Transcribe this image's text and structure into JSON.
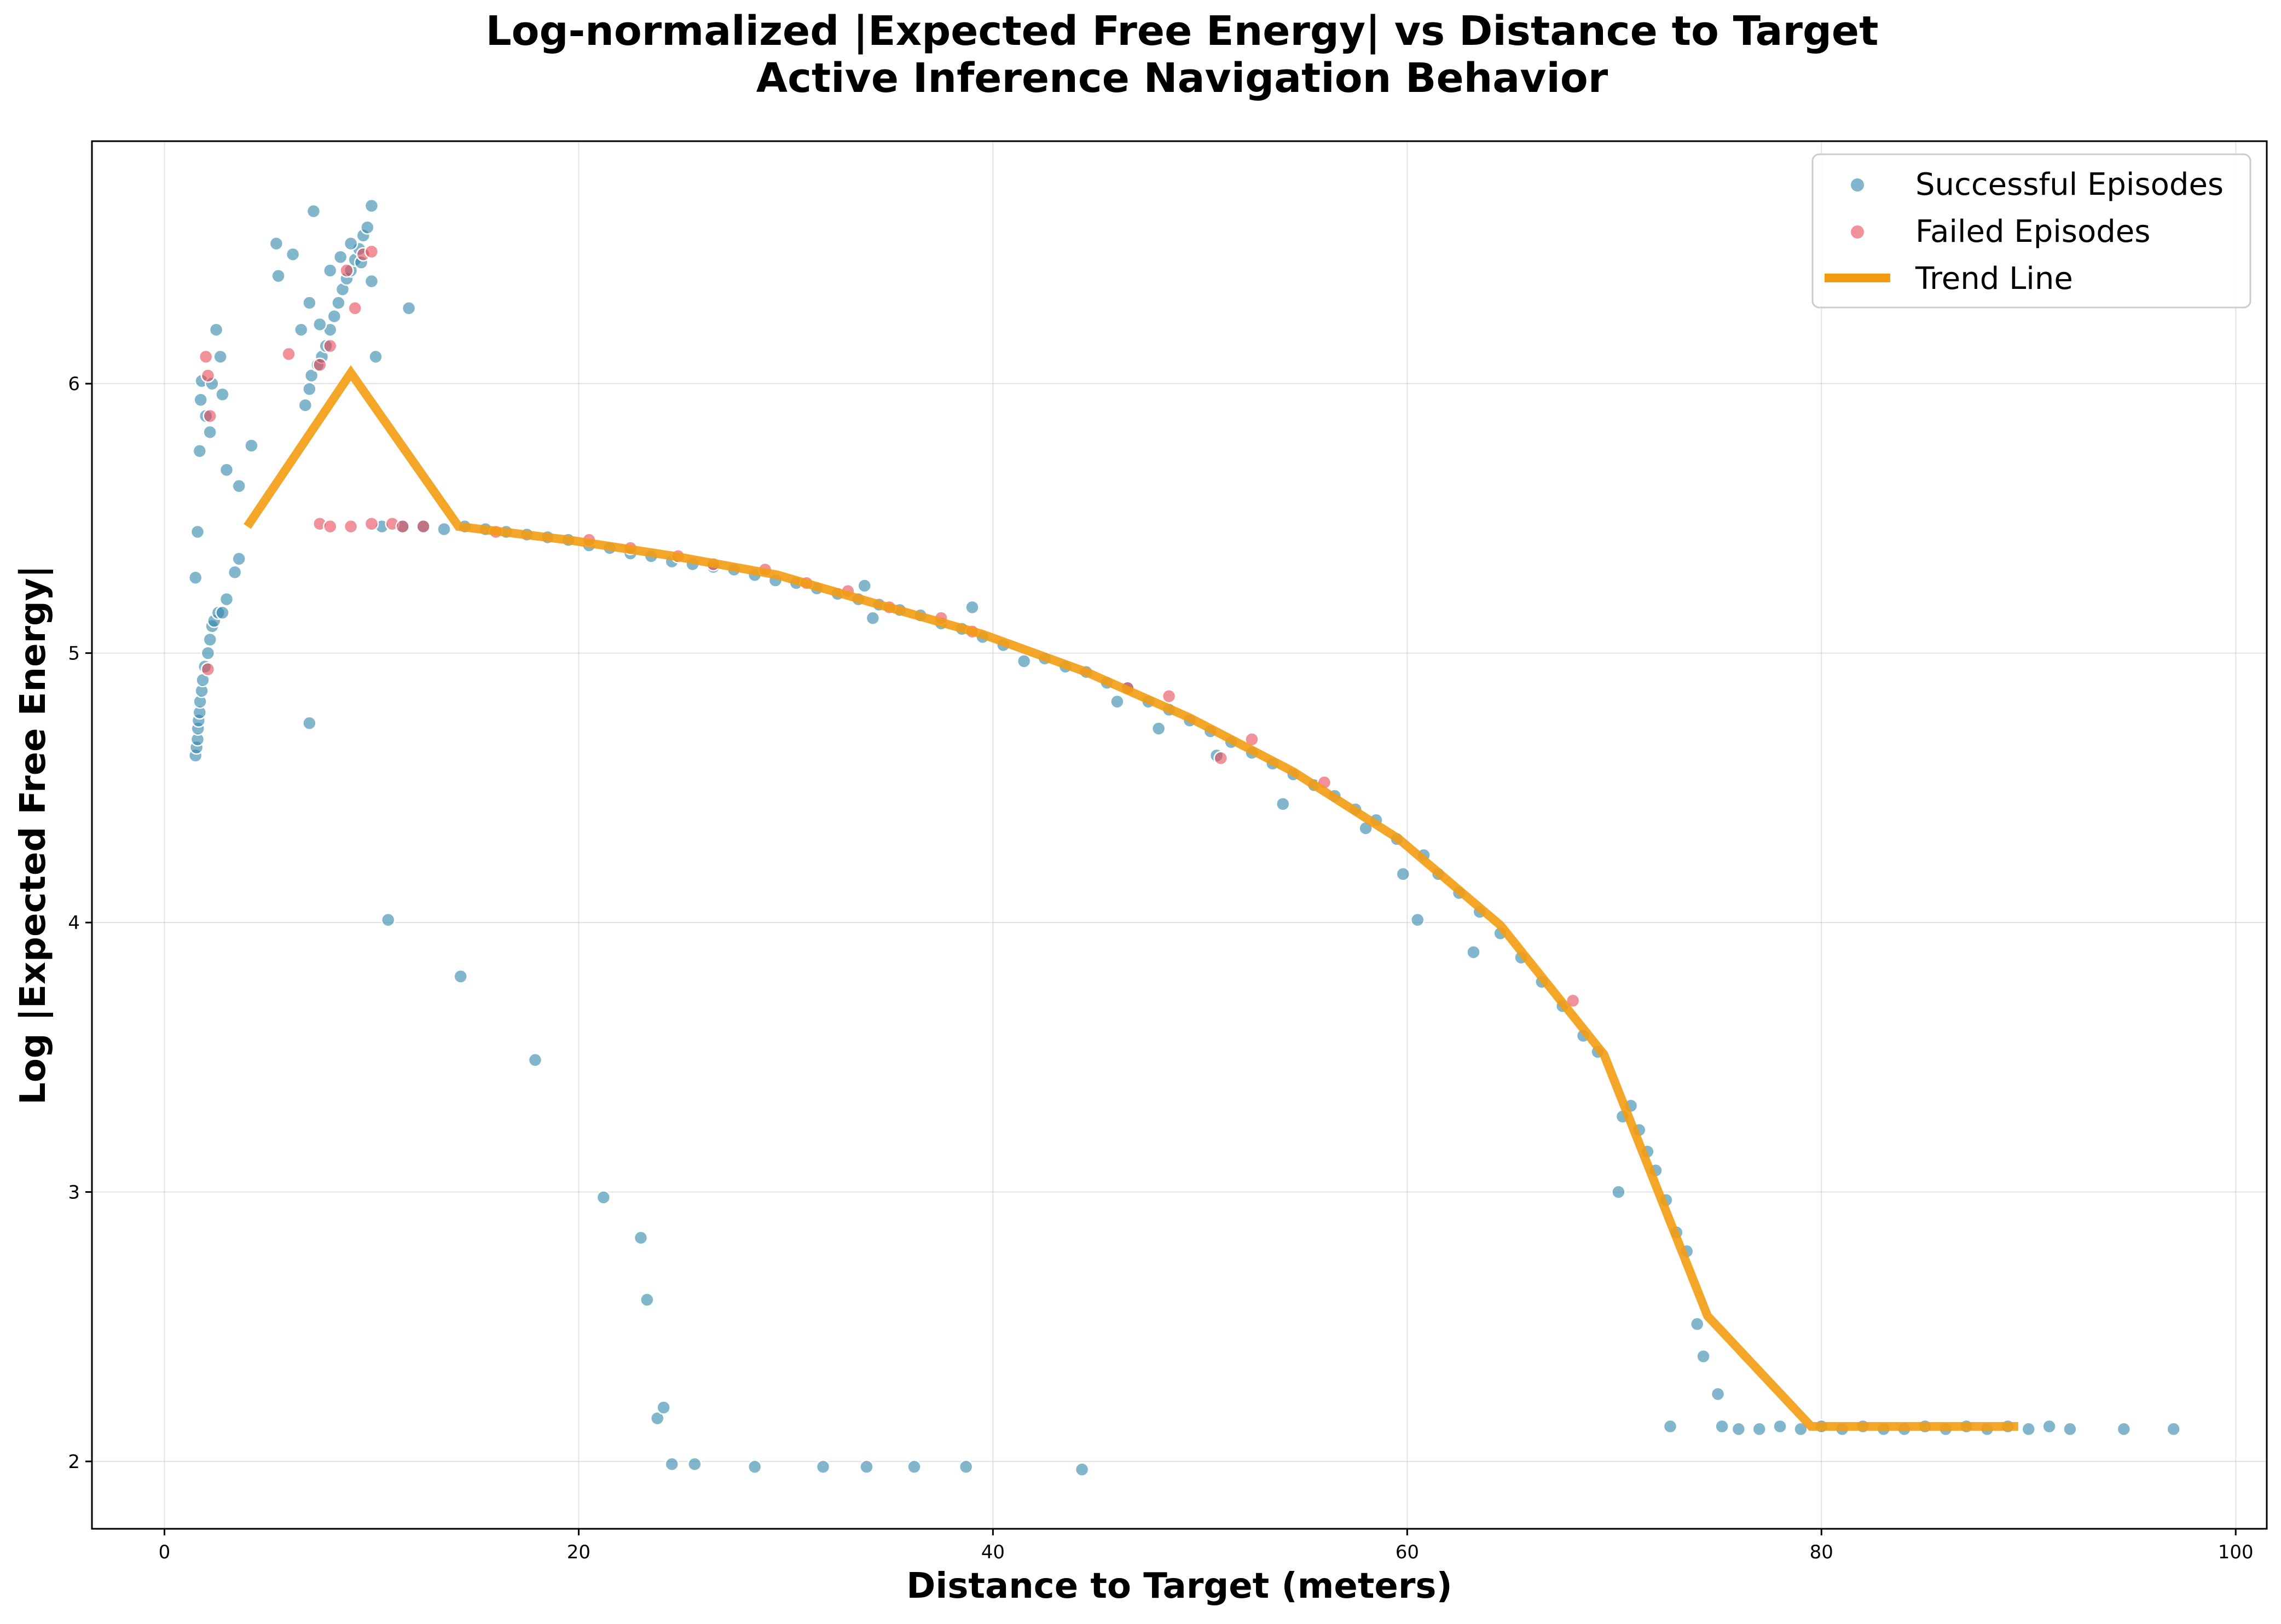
{
  "chart_data": {
    "type": "scatter",
    "title": "Log-normalized |Expected Free Energy| vs Distance to Target",
    "subtitle": "Active Inference Navigation Behavior",
    "xlabel": "Distance to Target (meters)",
    "ylabel": "Log |Expected Free Energy|",
    "xlim": [
      -3.5,
      101.5
    ],
    "ylim": [
      1.75,
      6.9
    ],
    "xticks": [
      0,
      20,
      40,
      60,
      80,
      100
    ],
    "yticks": [
      2,
      3,
      4,
      5,
      6
    ],
    "grid": true,
    "legend_position": "top-right",
    "colors": {
      "success": "#2e86ab",
      "failed": "#e84855",
      "trend": "#f39c12"
    },
    "series": [
      {
        "name": "Successful Episodes",
        "kind": "scatter",
        "points": [
          [
            1.5,
            4.62
          ],
          [
            1.55,
            4.65
          ],
          [
            1.6,
            4.68
          ],
          [
            1.62,
            4.72
          ],
          [
            1.65,
            4.75
          ],
          [
            1.7,
            4.78
          ],
          [
            1.72,
            4.82
          ],
          [
            1.8,
            4.86
          ],
          [
            1.85,
            4.9
          ],
          [
            1.95,
            4.95
          ],
          [
            2.1,
            5.0
          ],
          [
            2.2,
            5.05
          ],
          [
            2.3,
            5.1
          ],
          [
            2.4,
            5.12
          ],
          [
            2.6,
            5.15
          ],
          [
            2.8,
            5.15
          ],
          [
            3.0,
            5.2
          ],
          [
            3.4,
            5.3
          ],
          [
            3.6,
            5.35
          ],
          [
            1.5,
            5.28
          ],
          [
            1.6,
            5.45
          ],
          [
            1.7,
            5.75
          ],
          [
            1.75,
            5.94
          ],
          [
            1.8,
            6.01
          ],
          [
            2.0,
            5.88
          ],
          [
            2.2,
            5.82
          ],
          [
            2.3,
            6.0
          ],
          [
            2.5,
            6.2
          ],
          [
            2.7,
            6.1
          ],
          [
            2.8,
            5.96
          ],
          [
            3.0,
            5.68
          ],
          [
            3.6,
            5.62
          ],
          [
            4.2,
            5.77
          ],
          [
            5.4,
            6.52
          ],
          [
            5.5,
            6.4
          ],
          [
            6.2,
            6.48
          ],
          [
            6.6,
            6.2
          ],
          [
            6.8,
            5.92
          ],
          [
            7.0,
            5.98
          ],
          [
            7.1,
            6.03
          ],
          [
            7.2,
            6.64
          ],
          [
            7.4,
            6.07
          ],
          [
            7.6,
            6.1
          ],
          [
            7.8,
            6.14
          ],
          [
            8.0,
            6.2
          ],
          [
            8.2,
            6.25
          ],
          [
            8.4,
            6.3
          ],
          [
            8.6,
            6.35
          ],
          [
            8.8,
            6.39
          ],
          [
            9.0,
            6.42
          ],
          [
            9.2,
            6.46
          ],
          [
            9.4,
            6.5
          ],
          [
            9.6,
            6.55
          ],
          [
            9.8,
            6.58
          ],
          [
            10.0,
            6.66
          ],
          [
            10.0,
            6.38
          ],
          [
            7.0,
            6.3
          ],
          [
            7.5,
            6.22
          ],
          [
            8.0,
            6.42
          ],
          [
            8.5,
            6.47
          ],
          [
            9.0,
            6.52
          ],
          [
            9.5,
            6.45
          ],
          [
            10.2,
            6.1
          ],
          [
            11.8,
            6.28
          ],
          [
            7.0,
            4.74
          ],
          [
            10.8,
            4.01
          ],
          [
            14.3,
            3.8
          ],
          [
            17.9,
            3.49
          ],
          [
            21.2,
            2.98
          ],
          [
            23.0,
            2.83
          ],
          [
            23.3,
            2.6
          ],
          [
            23.8,
            2.16
          ],
          [
            24.1,
            2.2
          ],
          [
            24.5,
            1.99
          ],
          [
            25.6,
            1.99
          ],
          [
            28.5,
            1.98
          ],
          [
            31.8,
            1.98
          ],
          [
            33.9,
            1.98
          ],
          [
            36.2,
            1.98
          ],
          [
            38.7,
            1.98
          ],
          [
            44.3,
            1.97
          ],
          [
            10.5,
            5.47
          ],
          [
            11.5,
            5.47
          ],
          [
            12.5,
            5.47
          ],
          [
            13.5,
            5.46
          ],
          [
            14.5,
            5.47
          ],
          [
            15.5,
            5.46
          ],
          [
            16.5,
            5.45
          ],
          [
            17.5,
            5.44
          ],
          [
            18.5,
            5.43
          ],
          [
            19.5,
            5.42
          ],
          [
            20.5,
            5.4
          ],
          [
            21.5,
            5.39
          ],
          [
            22.5,
            5.37
          ],
          [
            23.5,
            5.36
          ],
          [
            24.5,
            5.34
          ],
          [
            25.5,
            5.33
          ],
          [
            26.5,
            5.32
          ],
          [
            27.5,
            5.31
          ],
          [
            28.5,
            5.29
          ],
          [
            29.5,
            5.27
          ],
          [
            30.5,
            5.26
          ],
          [
            31.5,
            5.24
          ],
          [
            32.5,
            5.22
          ],
          [
            33.5,
            5.2
          ],
          [
            33.8,
            5.25
          ],
          [
            34.2,
            5.13
          ],
          [
            34.5,
            5.18
          ],
          [
            35.5,
            5.16
          ],
          [
            36.5,
            5.14
          ],
          [
            37.5,
            5.11
          ],
          [
            38.5,
            5.09
          ],
          [
            39.0,
            5.17
          ],
          [
            39.5,
            5.06
          ],
          [
            40.5,
            5.03
          ],
          [
            41.5,
            4.97
          ],
          [
            42.5,
            4.98
          ],
          [
            43.5,
            4.95
          ],
          [
            44.5,
            4.93
          ],
          [
            45.5,
            4.89
          ],
          [
            46.0,
            4.82
          ],
          [
            46.5,
            4.87
          ],
          [
            47.5,
            4.82
          ],
          [
            48.0,
            4.72
          ],
          [
            48.5,
            4.79
          ],
          [
            49.5,
            4.75
          ],
          [
            50.5,
            4.71
          ],
          [
            50.8,
            4.62
          ],
          [
            51.5,
            4.67
          ],
          [
            52.5,
            4.63
          ],
          [
            53.5,
            4.59
          ],
          [
            54.0,
            4.44
          ],
          [
            54.5,
            4.55
          ],
          [
            55.5,
            4.51
          ],
          [
            56.5,
            4.47
          ],
          [
            57.5,
            4.42
          ],
          [
            58.0,
            4.35
          ],
          [
            58.5,
            4.38
          ],
          [
            59.5,
            4.31
          ],
          [
            59.8,
            4.18
          ],
          [
            60.5,
            4.01
          ],
          [
            60.8,
            4.25
          ],
          [
            61.5,
            4.18
          ],
          [
            62.5,
            4.11
          ],
          [
            63.2,
            3.89
          ],
          [
            63.5,
            4.04
          ],
          [
            64.5,
            3.96
          ],
          [
            65.5,
            3.87
          ],
          [
            66.5,
            3.78
          ],
          [
            67.5,
            3.69
          ],
          [
            68.5,
            3.58
          ],
          [
            69.2,
            3.52
          ],
          [
            70.2,
            3.0
          ],
          [
            70.4,
            3.28
          ],
          [
            70.8,
            3.32
          ],
          [
            71.2,
            3.23
          ],
          [
            71.6,
            3.15
          ],
          [
            72.0,
            3.08
          ],
          [
            72.5,
            2.97
          ],
          [
            73.0,
            2.85
          ],
          [
            73.5,
            2.78
          ],
          [
            74.0,
            2.51
          ],
          [
            74.3,
            2.39
          ],
          [
            72.7,
            2.13
          ],
          [
            75.0,
            2.25
          ],
          [
            75.2,
            2.13
          ],
          [
            76.0,
            2.12
          ],
          [
            77.0,
            2.12
          ],
          [
            78.0,
            2.13
          ],
          [
            79.0,
            2.12
          ],
          [
            80.0,
            2.13
          ],
          [
            81.0,
            2.12
          ],
          [
            82.0,
            2.13
          ],
          [
            83.0,
            2.12
          ],
          [
            84.0,
            2.12
          ],
          [
            85.0,
            2.13
          ],
          [
            86.0,
            2.12
          ],
          [
            87.0,
            2.13
          ],
          [
            88.0,
            2.12
          ],
          [
            89.0,
            2.13
          ],
          [
            90.0,
            2.12
          ],
          [
            91.0,
            2.13
          ],
          [
            92.0,
            2.12
          ],
          [
            94.6,
            2.12
          ],
          [
            97.0,
            2.12
          ]
        ]
      },
      {
        "name": "Failed Episodes",
        "kind": "scatter",
        "points": [
          [
            2.0,
            6.1
          ],
          [
            2.1,
            6.03
          ],
          [
            2.2,
            5.88
          ],
          [
            2.1,
            4.94
          ],
          [
            6.0,
            6.11
          ],
          [
            7.5,
            6.07
          ],
          [
            8.0,
            6.14
          ],
          [
            8.8,
            6.42
          ],
          [
            9.2,
            6.28
          ],
          [
            9.6,
            6.48
          ],
          [
            10.0,
            6.49
          ],
          [
            7.5,
            5.48
          ],
          [
            8.0,
            5.47
          ],
          [
            9.0,
            5.47
          ],
          [
            10.0,
            5.48
          ],
          [
            11.0,
            5.48
          ],
          [
            11.5,
            5.47
          ],
          [
            12.5,
            5.47
          ],
          [
            16.0,
            5.45
          ],
          [
            20.5,
            5.42
          ],
          [
            22.5,
            5.39
          ],
          [
            24.8,
            5.36
          ],
          [
            26.5,
            5.33
          ],
          [
            29.0,
            5.31
          ],
          [
            31.0,
            5.26
          ],
          [
            33.0,
            5.23
          ],
          [
            35.0,
            5.17
          ],
          [
            37.5,
            5.13
          ],
          [
            39.0,
            5.08
          ],
          [
            46.5,
            4.87
          ],
          [
            48.5,
            4.84
          ],
          [
            51.0,
            4.61
          ],
          [
            52.5,
            4.68
          ],
          [
            56.0,
            4.52
          ],
          [
            68.0,
            3.71
          ]
        ]
      },
      {
        "name": "Trend Line",
        "kind": "line",
        "points": [
          [
            4.0,
            5.47
          ],
          [
            9.0,
            6.04
          ],
          [
            14.2,
            5.47
          ],
          [
            19.5,
            5.42
          ],
          [
            24.6,
            5.36
          ],
          [
            29.6,
            5.29
          ],
          [
            34.5,
            5.18
          ],
          [
            39.5,
            5.07
          ],
          [
            44.5,
            4.93
          ],
          [
            49.5,
            4.76
          ],
          [
            54.5,
            4.56
          ],
          [
            59.6,
            4.31
          ],
          [
            64.5,
            3.99
          ],
          [
            69.5,
            3.51
          ],
          [
            74.5,
            2.54
          ],
          [
            79.5,
            2.13
          ],
          [
            84.5,
            2.13
          ],
          [
            89.5,
            2.13
          ]
        ]
      }
    ]
  }
}
